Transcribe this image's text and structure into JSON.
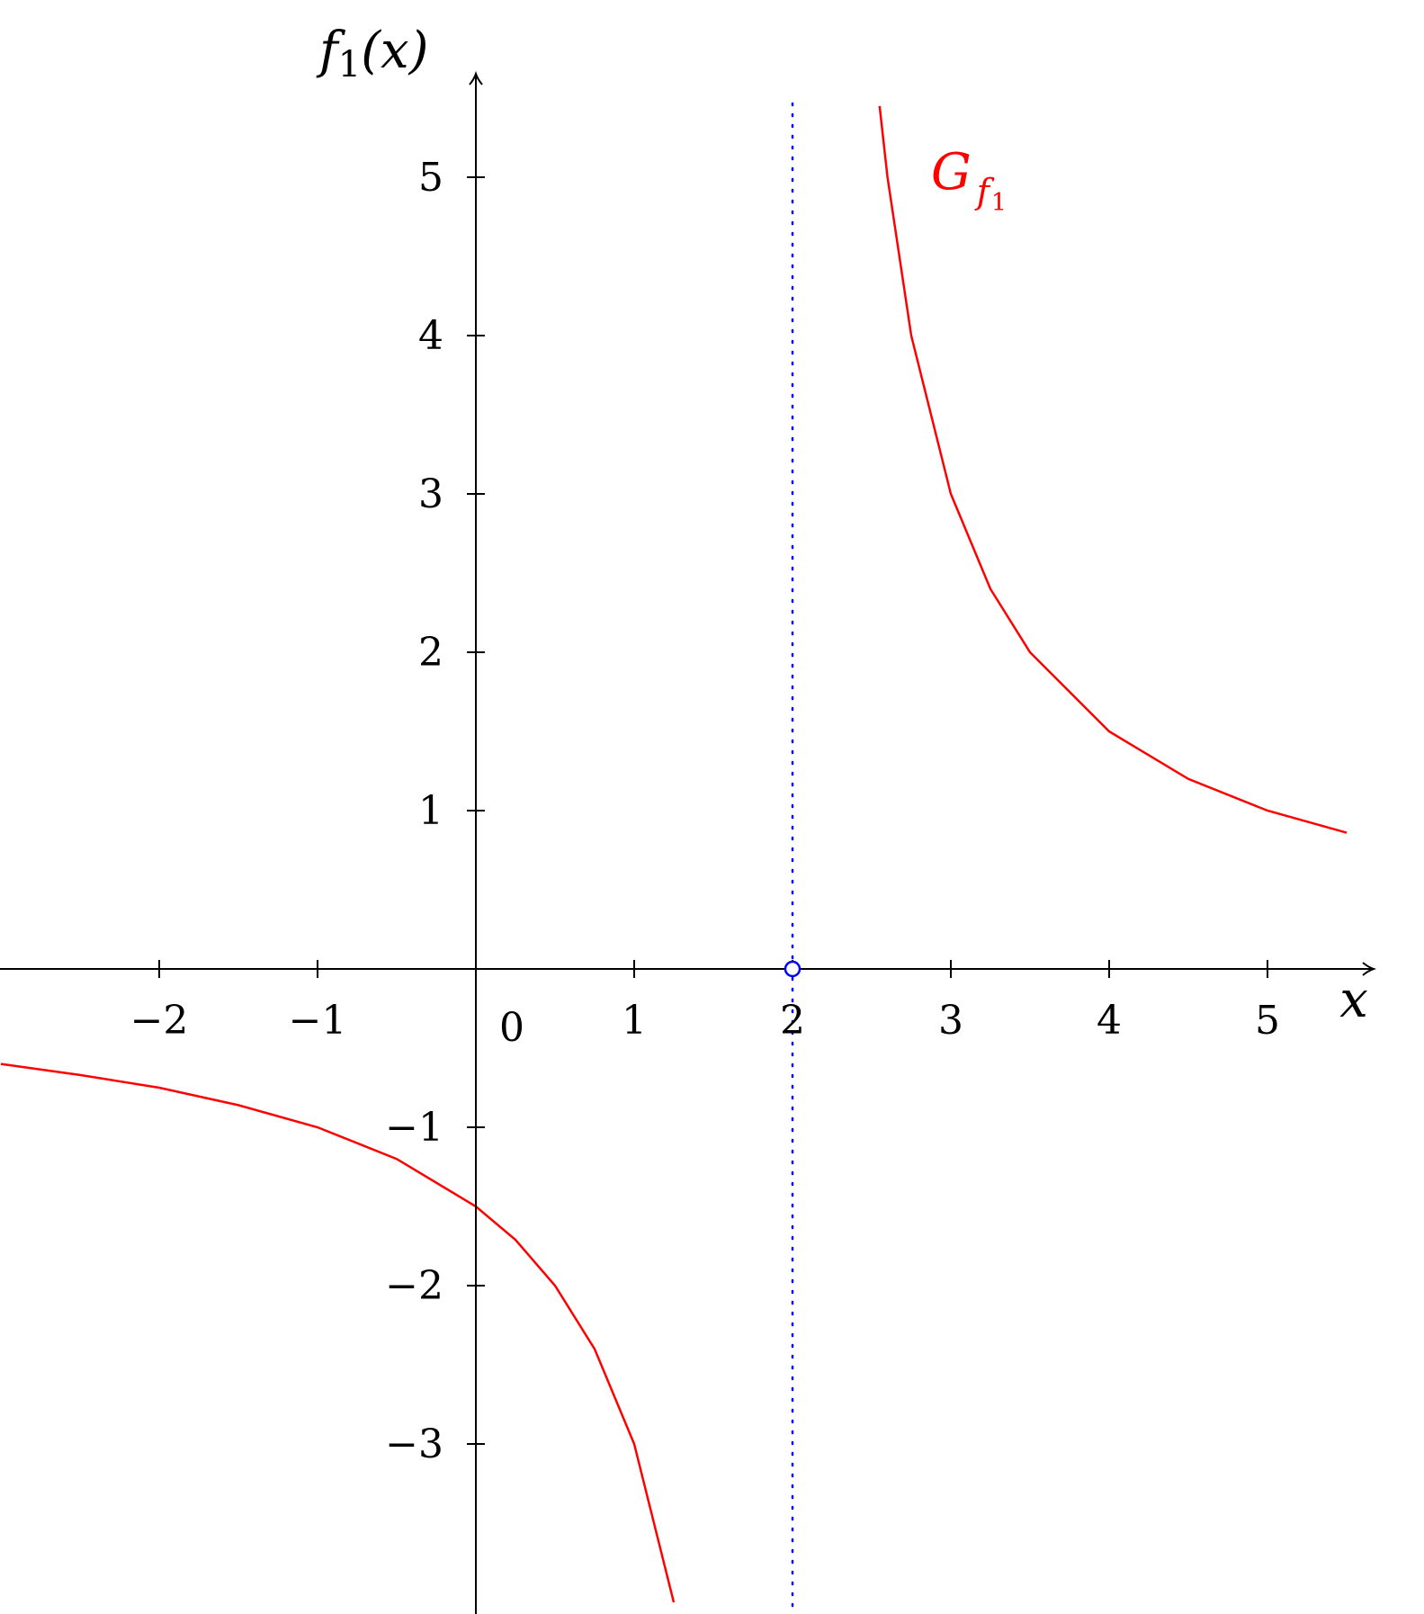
{
  "chart_data": {
    "type": "line",
    "title": "",
    "xlabel": "x",
    "ylabel": {
      "base": "f",
      "sub": "1",
      "arg": "(x)"
    },
    "xlim": [
      -3,
      5.6
    ],
    "ylim": [
      -3.9,
      5.6
    ],
    "x_ticks": [
      {
        "value": -2,
        "label": "−2"
      },
      {
        "value": -1,
        "label": "−1"
      },
      {
        "value": 1,
        "label": "1"
      },
      {
        "value": 2,
        "label": "2"
      },
      {
        "value": 3,
        "label": "3"
      },
      {
        "value": 4,
        "label": "4"
      },
      {
        "value": 5,
        "label": "5"
      }
    ],
    "y_ticks": [
      {
        "value": -3,
        "label": "−3"
      },
      {
        "value": -2,
        "label": "−2"
      },
      {
        "value": -1,
        "label": "−1"
      },
      {
        "value": 1,
        "label": "1"
      },
      {
        "value": 2,
        "label": "2"
      },
      {
        "value": 3,
        "label": "3"
      },
      {
        "value": 4,
        "label": "4"
      },
      {
        "value": 5,
        "label": "5"
      }
    ],
    "origin_label": "0",
    "grid": false,
    "series": [
      {
        "name": {
          "base": "G",
          "sub": "f",
          "sub2": "1"
        },
        "color": "#ff0000",
        "left_branch": {
          "x": [
            -3,
            -2.5,
            -2,
            -1.5,
            -1,
            -0.5,
            0,
            0.25,
            0.5,
            0.75,
            1,
            1.25
          ],
          "y": [
            -0.6,
            -0.67,
            -0.75,
            -0.86,
            -1,
            -1.2,
            -1.5,
            -1.71,
            -2,
            -2.4,
            -3,
            -4
          ]
        },
        "right_branch": {
          "x": [
            2.55,
            2.6,
            2.75,
            3,
            3.25,
            3.5,
            4,
            4.5,
            5,
            5.5
          ],
          "y": [
            5.45,
            5,
            4,
            3,
            2.4,
            2,
            1.5,
            1.2,
            1,
            0.86
          ]
        }
      }
    ],
    "asymptote": {
      "x": 2,
      "color": "#0000ff"
    },
    "hole": {
      "x": 2,
      "y": 0,
      "color": "#0000ff"
    }
  }
}
